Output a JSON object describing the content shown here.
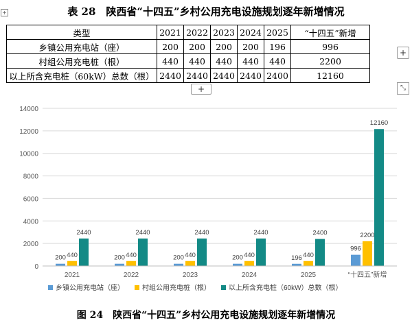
{
  "table": {
    "title": "表 28　陕西省“十四五”乡村公用充电设施规划逐年新增情况",
    "header": [
      "类型",
      "2021",
      "2022",
      "2023",
      "2024",
      "2025",
      "“十四五”新增"
    ],
    "rows": [
      [
        "乡镇公用充电站（座）",
        "200",
        "200",
        "200",
        "200",
        "196",
        "996"
      ],
      [
        "村组公用充电桩（根）",
        "440",
        "440",
        "440",
        "440",
        "440",
        "2200"
      ],
      [
        "以上所含充电桩（60kW）总数（根）",
        "2440",
        "2440",
        "2440",
        "2440",
        "2400",
        "12160"
      ]
    ],
    "add_label": "+",
    "move_label": "+",
    "resize_label": "⤡"
  },
  "chart_data": {
    "type": "bar",
    "categories": [
      "2021",
      "2022",
      "2023",
      "2024",
      "2025",
      "“十四五”新增"
    ],
    "series": [
      {
        "name": "乡镇公用充电站（座）",
        "color": "#5b9bd5",
        "values": [
          200,
          200,
          200,
          200,
          196,
          996
        ]
      },
      {
        "name": "村组公用充电桩（根）",
        "color": "#ffc000",
        "values": [
          440,
          440,
          440,
          440,
          440,
          2200
        ]
      },
      {
        "name": "以上所含充电桩（60kW）总数（根）",
        "color": "#138a86",
        "values": [
          2440,
          2440,
          2440,
          2440,
          2400,
          12160
        ]
      }
    ],
    "ylim": [
      0,
      14000
    ],
    "yticks": [
      0,
      2000,
      4000,
      6000,
      8000,
      10000,
      12000,
      14000
    ],
    "grid": true,
    "legend": "bottom",
    "title": "图 24　陕西省“十四五”乡村公用充电设施规划逐年新增情况"
  }
}
